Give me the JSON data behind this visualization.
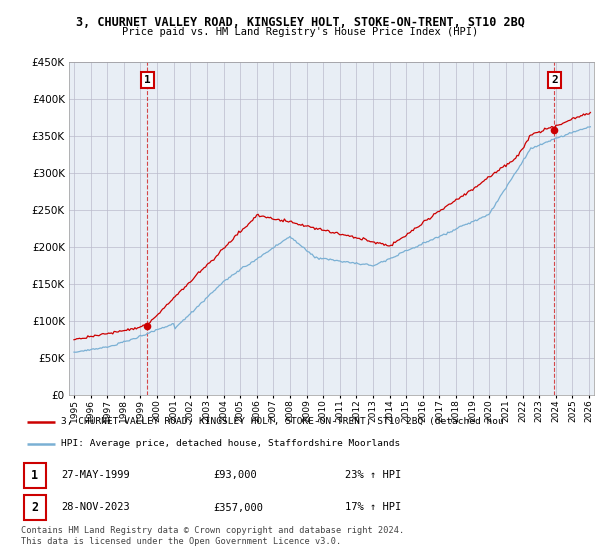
{
  "title": "3, CHURNET VALLEY ROAD, KINGSLEY HOLT, STOKE-ON-TRENT, ST10 2BQ",
  "subtitle": "Price paid vs. HM Land Registry's House Price Index (HPI)",
  "ylim": [
    0,
    450000
  ],
  "yticks": [
    0,
    50000,
    100000,
    150000,
    200000,
    250000,
    300000,
    350000,
    400000,
    450000
  ],
  "legend_red": "3, CHURNET VALLEY ROAD, KINGSLEY HOLT, STOKE-ON-TRENT, ST10 2BQ (detached hou",
  "legend_blue": "HPI: Average price, detached house, Staffordshire Moorlands",
  "transaction1_date": "27-MAY-1999",
  "transaction1_price": "£93,000",
  "transaction1_hpi": "23% ↑ HPI",
  "transaction2_date": "28-NOV-2023",
  "transaction2_price": "£357,000",
  "transaction2_hpi": "17% ↑ HPI",
  "footer": "Contains HM Land Registry data © Crown copyright and database right 2024.\nThis data is licensed under the Open Government Licence v3.0.",
  "red_color": "#cc0000",
  "blue_color": "#7ab0d4",
  "grid_color": "#bbbbcc",
  "plot_bg": "#e8eef5",
  "bg_color": "#ffffff",
  "transaction1_x": 1999.42,
  "transaction1_y": 93000,
  "transaction2_x": 2023.92,
  "transaction2_y": 357000,
  "xlim_left": 1994.7,
  "xlim_right": 2026.3
}
